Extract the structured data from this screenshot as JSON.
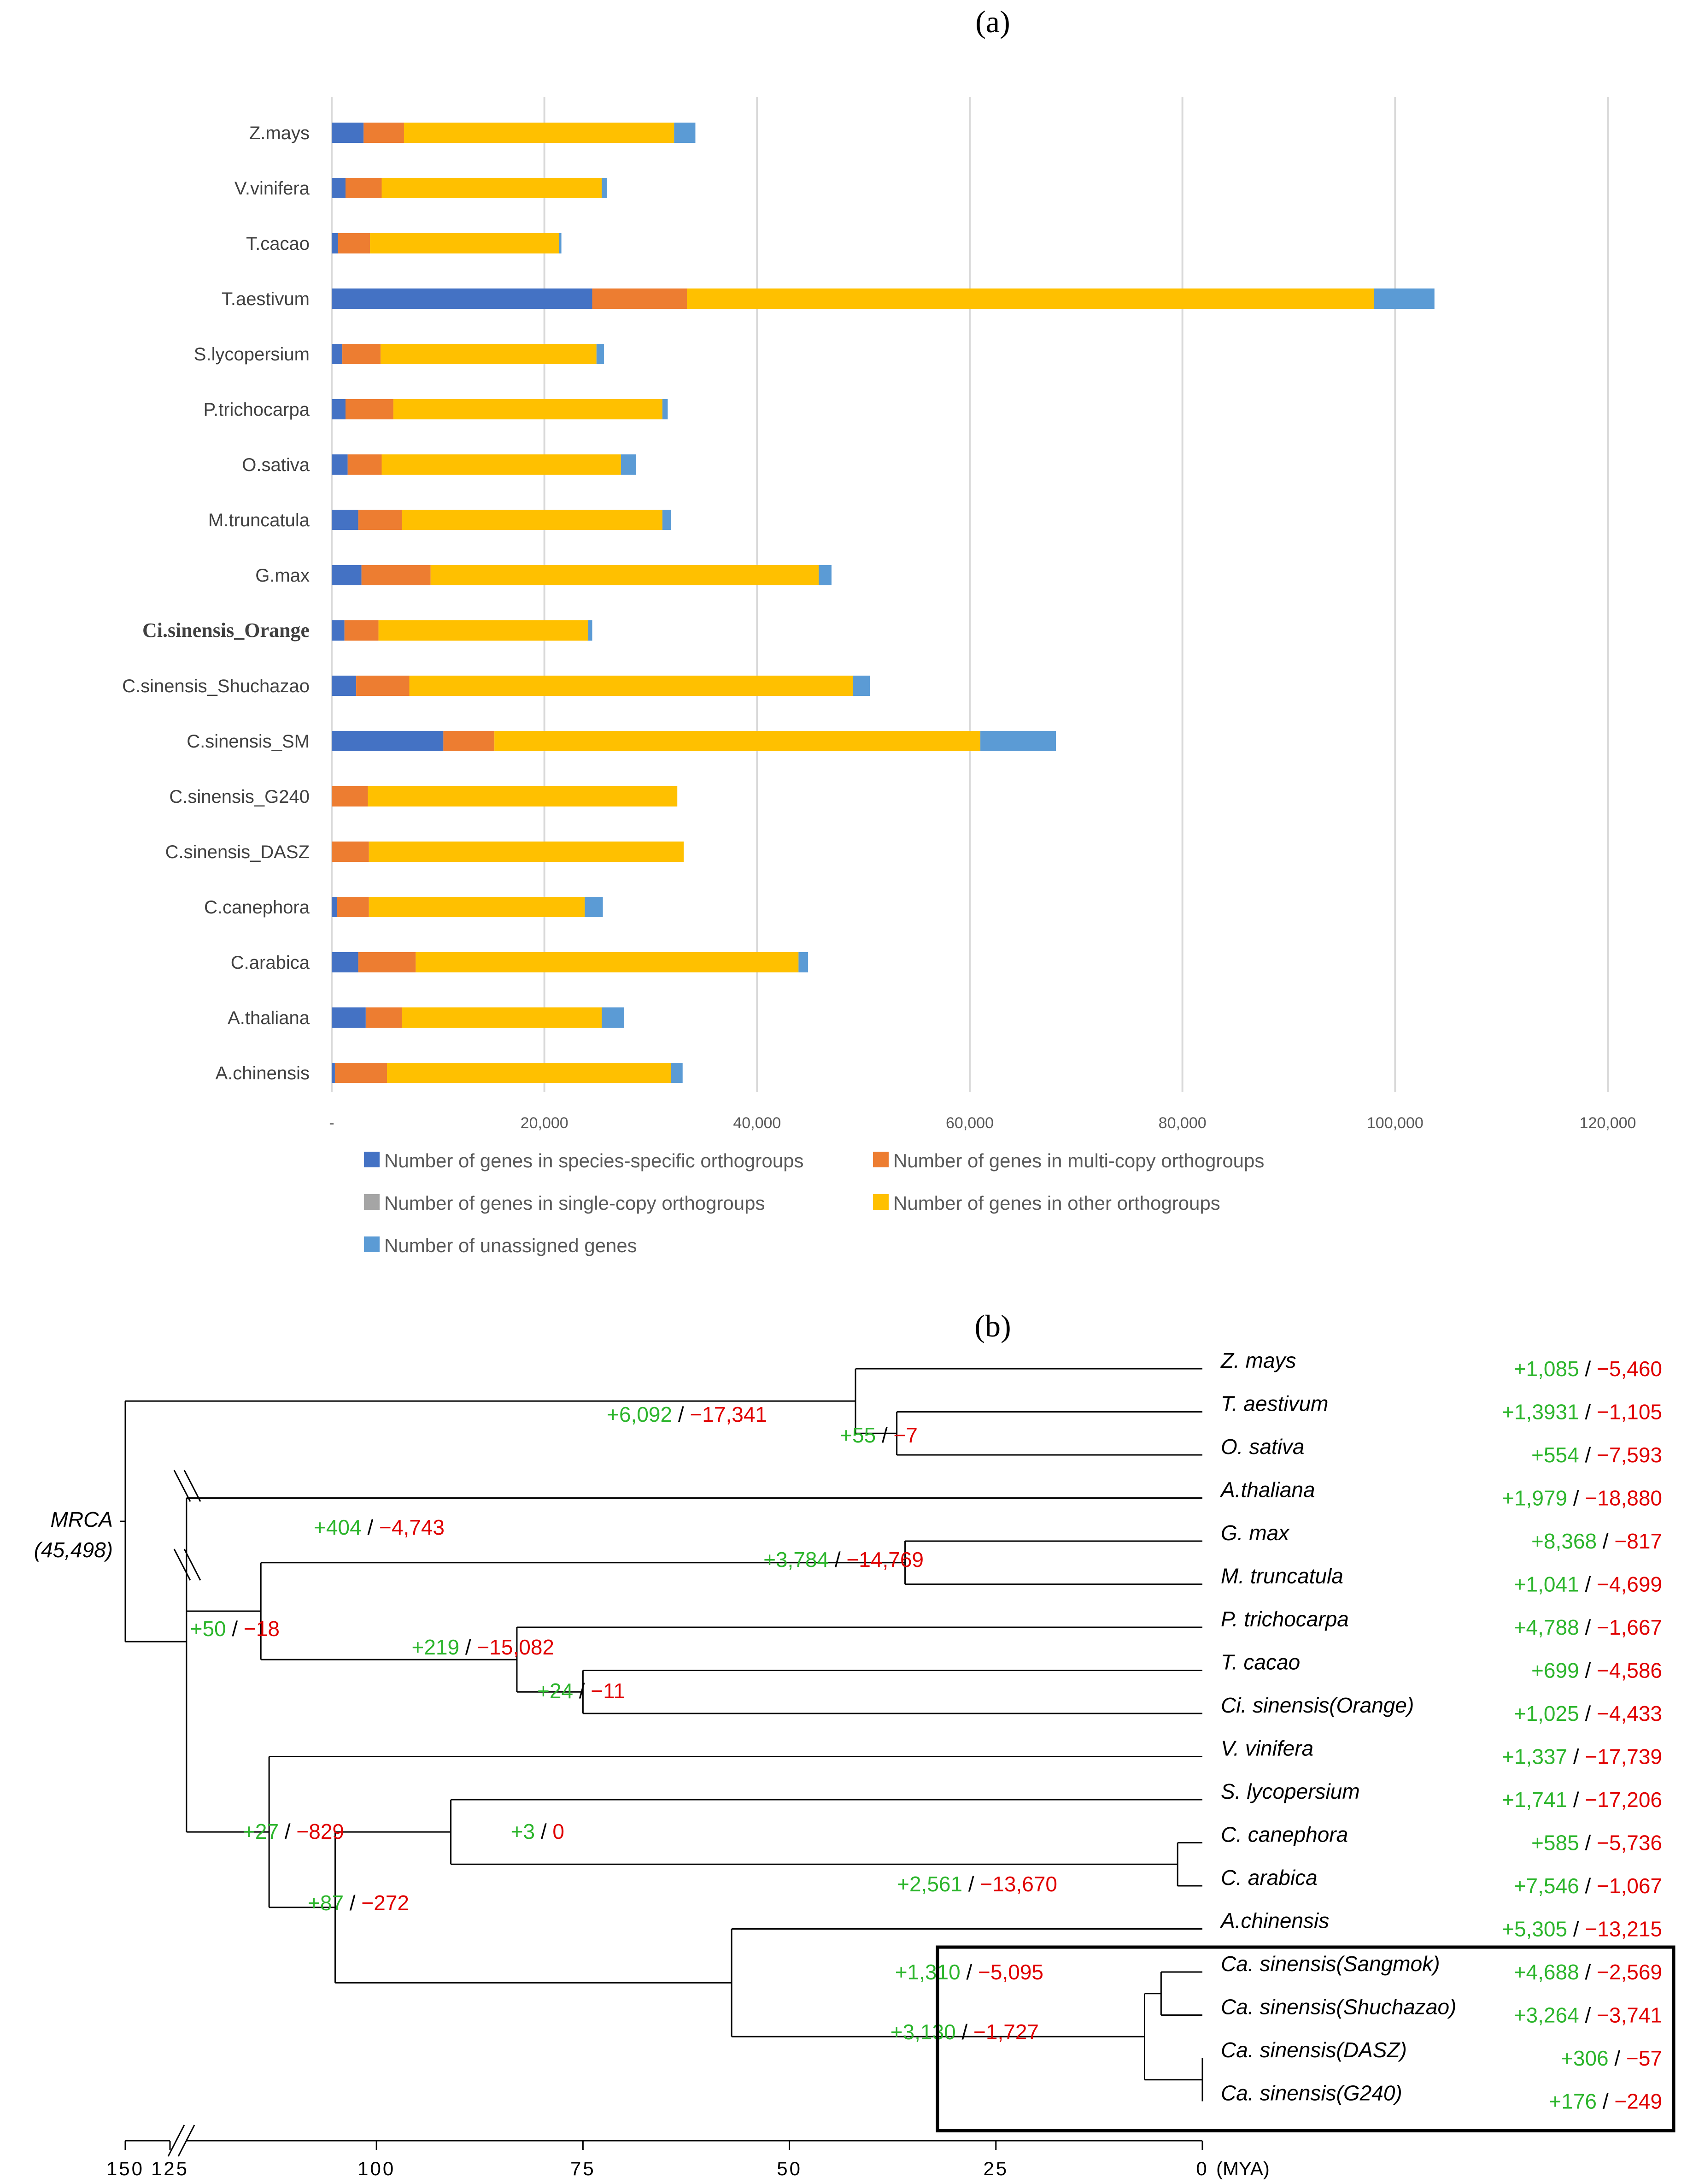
{
  "colors": {
    "species_specific": "#4472C4",
    "multi_copy": "#ED7D31",
    "single_copy": "#A5A5A5",
    "other": "#FFC000",
    "unassigned": "#5B9BD5",
    "gain": "#2CB52C",
    "loss": "#E00000"
  },
  "chart_data": [
    {
      "type": "bar",
      "orientation": "horizontal",
      "stacked": true,
      "panel_label": "(a)",
      "categories": [
        "Z.mays",
        "V.vinifera",
        "T.cacao",
        "T.aestivum",
        "S.lycopersium",
        "P.trichocarpa",
        "O.sativa",
        "M.truncatula",
        "G.max",
        "Ci.sinensis_Orange",
        "C.sinensis_Shuchazao",
        "C.sinensis_SM",
        "C.sinensis_G240",
        "C.sinensis_DASZ",
        "C.canephora",
        "C.arabica",
        "A.thaliana",
        "A.chinensis"
      ],
      "series": [
        {
          "name": "Number of genes in species-specific orthogroups",
          "color_key": "species_specific",
          "values": [
            3000,
            1300,
            600,
            24500,
            1000,
            1300,
            1500,
            2500,
            2800,
            1200,
            2300,
            10500,
            0,
            0,
            500,
            2500,
            3200,
            300
          ]
        },
        {
          "name": "Number of genes in multi-copy orthogroups",
          "color_key": "multi_copy",
          "values": [
            3800,
            3400,
            3000,
            8900,
            3600,
            4500,
            3200,
            4100,
            6500,
            3200,
            5000,
            4800,
            3400,
            3500,
            3000,
            5400,
            3400,
            4900
          ]
        },
        {
          "name": "Number of genes in single-copy orthogroups",
          "color_key": "single_copy",
          "values": [
            0,
            0,
            0,
            0,
            0,
            0,
            0,
            0,
            0,
            0,
            0,
            0,
            0,
            0,
            0,
            0,
            0,
            0
          ]
        },
        {
          "name": "Number of genes in other orthogroups",
          "color_key": "other",
          "values": [
            25400,
            20700,
            17800,
            64600,
            20300,
            25300,
            22500,
            24500,
            36500,
            19700,
            41700,
            45700,
            29100,
            29600,
            20300,
            36000,
            18800,
            26700
          ]
        },
        {
          "name": "Number of unassigned genes",
          "color_key": "unassigned",
          "values": [
            2000,
            500,
            200,
            5700,
            700,
            500,
            1400,
            800,
            1200,
            400,
            1600,
            7100,
            0,
            0,
            1700,
            900,
            2100,
            1100
          ]
        }
      ],
      "xlim": [
        0,
        120000
      ],
      "x_ticks": [
        "-",
        "20,000",
        "40,000",
        "60,000",
        "80,000",
        "100,000",
        "120,000"
      ],
      "grid": true,
      "legend": "bottom"
    },
    {
      "type": "tree",
      "panel_label": "(b)",
      "root": {
        "label": "MRCA",
        "sub": "(45,498)",
        "age": 150
      },
      "axis": {
        "ticks": [
          "150",
          "125",
          "100",
          "75",
          "50",
          "25",
          "0"
        ],
        "unit": "(MYA)"
      },
      "leaves": [
        {
          "name": "Z. mays",
          "gain": "+1,085",
          "loss": "−5,460"
        },
        {
          "name": "T. aestivum",
          "gain": "+1,3931",
          "loss": "−1,105"
        },
        {
          "name": "O. sativa",
          "gain": "+554",
          "loss": "−7,593"
        },
        {
          "name": "A.thaliana",
          "gain": "+1,979",
          "loss": "−18,880"
        },
        {
          "name": "G. max",
          "gain": "+8,368",
          "loss": "−817"
        },
        {
          "name": "M. truncatula",
          "gain": "+1,041",
          "loss": "−4,699"
        },
        {
          "name": "P. trichocarpa",
          "gain": "+4,788",
          "loss": "−1,667"
        },
        {
          "name": "T. cacao",
          "gain": "+699",
          "loss": "−4,586"
        },
        {
          "name": "Ci. sinensis(Orange)",
          "gain": "+1,025",
          "loss": "−4,433"
        },
        {
          "name": "V. vinifera",
          "gain": "+1,337",
          "loss": "−17,739"
        },
        {
          "name": "S. lycopersium",
          "gain": "+1,741",
          "loss": "−17,206"
        },
        {
          "name": "C. canephora",
          "gain": "+585",
          "loss": "−5,736"
        },
        {
          "name": "C. arabica",
          "gain": "+7,546",
          "loss": "−1,067"
        },
        {
          "name": "A.chinensis",
          "gain": "+5,305",
          "loss": "−13,215"
        },
        {
          "name": "Ca. sinensis(Sangmok)",
          "gain": "+4,688",
          "loss": "−2,569"
        },
        {
          "name": "Ca. sinensis(Shuchazao)",
          "gain": "+3,264",
          "loss": "−3,741"
        },
        {
          "name": "Ca. sinensis(DASZ)",
          "gain": "+306",
          "loss": "−57"
        },
        {
          "name": "Ca. sinensis(G240)",
          "gain": "+176",
          "loss": "−249"
        }
      ],
      "internal_nodes": [
        {
          "id": "monocots",
          "age": 42,
          "gain": "+6,092",
          "loss": "−17,341"
        },
        {
          "id": "triticeae",
          "age": 37,
          "gain": "+55",
          "loss": "−7"
        },
        {
          "id": "eudicots",
          "age": 123,
          "gain": "+50",
          "loss": "−18"
        },
        {
          "id": "core",
          "age": 114,
          "gain": "+404",
          "loss": "−4,743"
        },
        {
          "id": "legumes",
          "age": 36,
          "gain": "+3,784",
          "loss": "−14,769"
        },
        {
          "id": "malvids",
          "age": 83,
          "gain": "+219",
          "loss": "−15,082"
        },
        {
          "id": "cacao-citrus",
          "age": 75,
          "gain": "+24",
          "loss": "−11"
        },
        {
          "id": "asterids-vitis",
          "age": 113,
          "gain": "+27",
          "loss": "−829"
        },
        {
          "id": "asterids",
          "age": 105,
          "gain": "+87",
          "loss": "−272"
        },
        {
          "id": "lamiids",
          "age": 91,
          "gain": "+3",
          "loss": "0"
        },
        {
          "id": "coffee",
          "age": 3,
          "gain": "+2,561",
          "loss": "−13,670"
        },
        {
          "id": "tea-kiwi",
          "age": 57,
          "gain": "",
          "loss": ""
        },
        {
          "id": "tea",
          "age": 7,
          "gain": "+3,130",
          "loss": "−1,727"
        },
        {
          "id": "tea-sm-sh",
          "age": 5,
          "gain": "+1,310",
          "loss": "−5,095"
        },
        {
          "id": "tea-dasz-g240",
          "age": 0,
          "gain": "",
          "loss": ""
        }
      ],
      "topology": {
        "children": [
          {
            "id": "monocots",
            "children": [
              {
                "leaf": 0
              },
              {
                "id": "triticeae",
                "children": [
                  {
                    "leaf": 1
                  },
                  {
                    "leaf": 2
                  }
                ]
              }
            ]
          },
          {
            "id": "eudicots",
            "children": [
              {
                "leaf": 3
              },
              {
                "id": "core",
                "children": [
                  {
                    "id": "legumes",
                    "children": [
                      {
                        "leaf": 4
                      },
                      {
                        "leaf": 5
                      }
                    ]
                  },
                  {
                    "id": "malvids",
                    "children": [
                      {
                        "leaf": 6
                      },
                      {
                        "id": "cacao-citrus",
                        "children": [
                          {
                            "leaf": 7
                          },
                          {
                            "leaf": 8
                          }
                        ]
                      }
                    ]
                  }
                ]
              },
              {
                "id": "asterids-vitis",
                "children": [
                  {
                    "leaf": 9
                  },
                  {
                    "id": "asterids",
                    "children": [
                      {
                        "id": "lamiids",
                        "children": [
                          {
                            "leaf": 10
                          },
                          {
                            "id": "coffee",
                            "children": [
                              {
                                "leaf": 11
                              },
                              {
                                "leaf": 12
                              }
                            ]
                          }
                        ]
                      },
                      {
                        "id": "tea-kiwi",
                        "children": [
                          {
                            "leaf": 13
                          },
                          {
                            "id": "tea",
                            "children": [
                              {
                                "id": "tea-sm-sh",
                                "children": [
                                  {
                                    "leaf": 14
                                  },
                                  {
                                    "leaf": 15
                                  }
                                ]
                              },
                              {
                                "id": "tea-dasz-g240",
                                "children": [
                                  {
                                    "leaf": 16
                                  },
                                  {
                                    "leaf": 17
                                  }
                                ]
                              }
                            ]
                          }
                        ]
                      }
                    ]
                  }
                ]
              }
            ]
          }
        ]
      }
    }
  ]
}
